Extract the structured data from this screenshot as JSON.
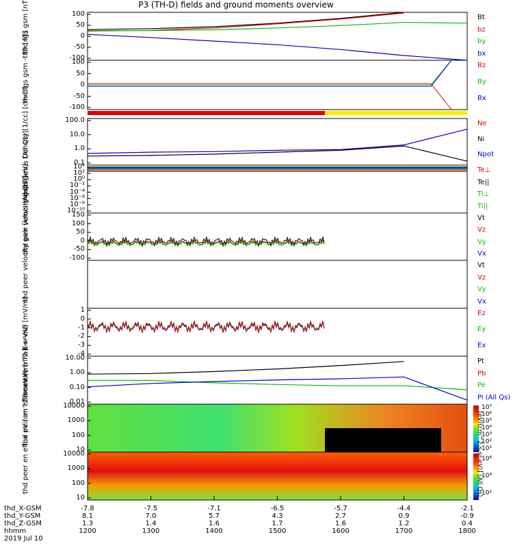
{
  "title": "P3 (TH-D) fields and ground moments overview",
  "panels": [
    {
      "name": "fgs-gsm",
      "ylabel": "thd fgs gsm [nT]",
      "ticks": [
        "100",
        "50",
        "0",
        "-50",
        "-100"
      ],
      "legend": [
        {
          "t": "Bt",
          "c": "#000000"
        },
        {
          "t": "bz",
          "c": "#e00000"
        },
        {
          "t": "by",
          "c": "#00c000"
        },
        {
          "t": "bx",
          "c": "#0000d0"
        }
      ]
    },
    {
      "name": "fgs-gsm-t89",
      "ylabel": "thd fgs gsm -t89 [nT]",
      "ticks": [
        "100",
        "50",
        "0",
        "-50",
        "-100"
      ],
      "legend": [
        {
          "t": "Bz",
          "c": "#e00000"
        },
        {
          "t": "By",
          "c": "#00c000"
        },
        {
          "t": "Bx",
          "c": "#0000d0"
        }
      ]
    },
    {
      "name": "density",
      "ylabel": "Density [1/cc] [cm-3]",
      "ticks": [
        "100.0",
        "10.0",
        "1.0",
        "0.1"
      ],
      "legend": [
        {
          "t": "Ne",
          "c": "#e00000"
        },
        {
          "t": "Ni",
          "c": "#000000"
        },
        {
          "t": "Npot",
          "c": "#0000d0"
        }
      ]
    },
    {
      "name": "temperature",
      "ylabel": "moqt3 [eV]",
      "ticks": [
        "10⁴",
        "10²",
        "10⁰",
        "10⁻²",
        "10⁻⁴",
        "10⁻⁶",
        "10⁻⁸",
        "10⁻¹⁰"
      ],
      "legend": [
        {
          "t": "Te⊥",
          "c": "#e00000"
        },
        {
          "t": "Te||",
          "c": "#000000"
        },
        {
          "t": "Ti⊥",
          "c": "#00c000"
        },
        {
          "t": "Ti||",
          "c": "#00c000"
        }
      ]
    },
    {
      "name": "peir-velocity",
      "ylabel": "thd peir velocity gsm [km/s (All Qs)]",
      "ticks": [
        "150",
        "100",
        "50",
        "0",
        "-50",
        "-100"
      ],
      "legend": [
        {
          "t": "Vt",
          "c": "#000000"
        },
        {
          "t": "Vz",
          "c": "#e00000"
        },
        {
          "t": "Vy",
          "c": "#00c000"
        },
        {
          "t": "Vx",
          "c": "#0000d0"
        }
      ]
    },
    {
      "name": "peer-velocity",
      "ylabel": "thd peer velocity gsm [km/s (All Qs)]",
      "ticks": [],
      "legend": [
        {
          "t": "Vt",
          "c": "#000000"
        },
        {
          "t": "Vz",
          "c": "#e00000"
        },
        {
          "t": "Vy",
          "c": "#00c000"
        },
        {
          "t": "Vx",
          "c": "#0000d0"
        }
      ]
    },
    {
      "name": "efield",
      "ylabel": "E=-VxB [mV/m]",
      "ticks": [
        "1",
        "0",
        "-1",
        "-2",
        "-3",
        "-4"
      ],
      "legend": [
        {
          "t": "Ez",
          "c": "#e00000"
        },
        {
          "t": "Ey",
          "c": "#00c000"
        },
        {
          "t": "Ex",
          "c": "#0000d0"
        }
      ]
    },
    {
      "name": "pressure",
      "ylabel": "Pressure [nPa]",
      "ticks": [
        "10.00",
        "1.00",
        "0.10",
        "0.01"
      ],
      "legend": [
        {
          "t": "Pt",
          "c": "#000000"
        },
        {
          "t": "Pb",
          "c": "#e00000"
        },
        {
          "t": "Pe",
          "c": "#00c000"
        },
        {
          "t": "Pi (All Qs)",
          "c": "#0000d0"
        }
      ]
    },
    {
      "name": "peir-eflux",
      "ylabel": "thd peir en eflux eV (cm^2-s-sr-eV)",
      "ticks": [
        "10000",
        "1000",
        "100",
        "10"
      ],
      "legend": []
    },
    {
      "name": "peer-eflux",
      "ylabel": "thd peer en eflux eV (cm^2-s-sr-eV)",
      "ticks": [
        "10000",
        "1000",
        "100",
        "10"
      ],
      "legend": []
    }
  ],
  "colorbar1": {
    "ticks": [
      "10⁷",
      "10⁶",
      "10⁵",
      "10⁴",
      "10³",
      "10²",
      "10¹"
    ],
    "label": "[eV/(cm^2-s-sr-eV)] (All Qs)"
  },
  "colorbar2": {
    "ticks": [
      "10⁶",
      "10⁴",
      "10²"
    ],
    "label": "[eV/(cm^2-s-sr-eV)]"
  },
  "footer": {
    "rows": [
      {
        "label": "thd_X-GSM",
        "values": [
          "-7.8",
          "-7.5",
          "-7.1",
          "-6.5",
          "-5.7",
          "-4.4",
          "-2.1"
        ]
      },
      {
        "label": "thd_Y-GSM",
        "values": [
          "8.1",
          "7.0",
          "5.7",
          "4.3",
          "2.7",
          "0.9",
          "-0.9"
        ]
      },
      {
        "label": "thd_Z-GSM",
        "values": [
          "1.3",
          "1.4",
          "1.6",
          "1.7",
          "1.6",
          "1.2",
          "0.4"
        ]
      },
      {
        "label": "hhmm",
        "values": [
          "1200",
          "1300",
          "1400",
          "1500",
          "1600",
          "1700",
          "1800"
        ]
      }
    ],
    "date": "2019 Jul 10"
  },
  "chart_data": {
    "type": "line",
    "title": "P3 (TH-D) fields and ground moments overview",
    "x_label": "hhmm",
    "x": [
      "1200",
      "1300",
      "1400",
      "1500",
      "1600",
      "1700",
      "1800"
    ],
    "series": [
      {
        "name": "Bt",
        "values": [
          28,
          32,
          40,
          55,
          75,
          100,
          null
        ]
      },
      {
        "name": "bz",
        "values": [
          22,
          25,
          35,
          52,
          72,
          97,
          null
        ]
      },
      {
        "name": "by",
        "values": [
          24,
          24,
          27,
          35,
          45,
          58,
          55
        ]
      },
      {
        "name": "bx",
        "values": [
          8,
          -5,
          -20,
          -35,
          -55,
          -80,
          -100
        ]
      },
      {
        "name": "Ni",
        "values": [
          0.25,
          0.28,
          0.35,
          0.5,
          0.7,
          1.5,
          0.1
        ]
      },
      {
        "name": "Npot",
        "values": [
          0.4,
          0.5,
          0.55,
          0.7,
          0.8,
          1.8,
          30
        ]
      },
      {
        "name": "Pt",
        "values": [
          0.9,
          1.0,
          1.4,
          2.2,
          4.0,
          8.0,
          null
        ]
      },
      {
        "name": "Pe",
        "values": [
          0.3,
          0.3,
          0.2,
          0.15,
          0.12,
          0.12,
          0.06
        ]
      },
      {
        "name": "Pi",
        "values": [
          0.1,
          0.18,
          0.25,
          0.33,
          0.4,
          0.55,
          0.01
        ]
      }
    ]
  }
}
